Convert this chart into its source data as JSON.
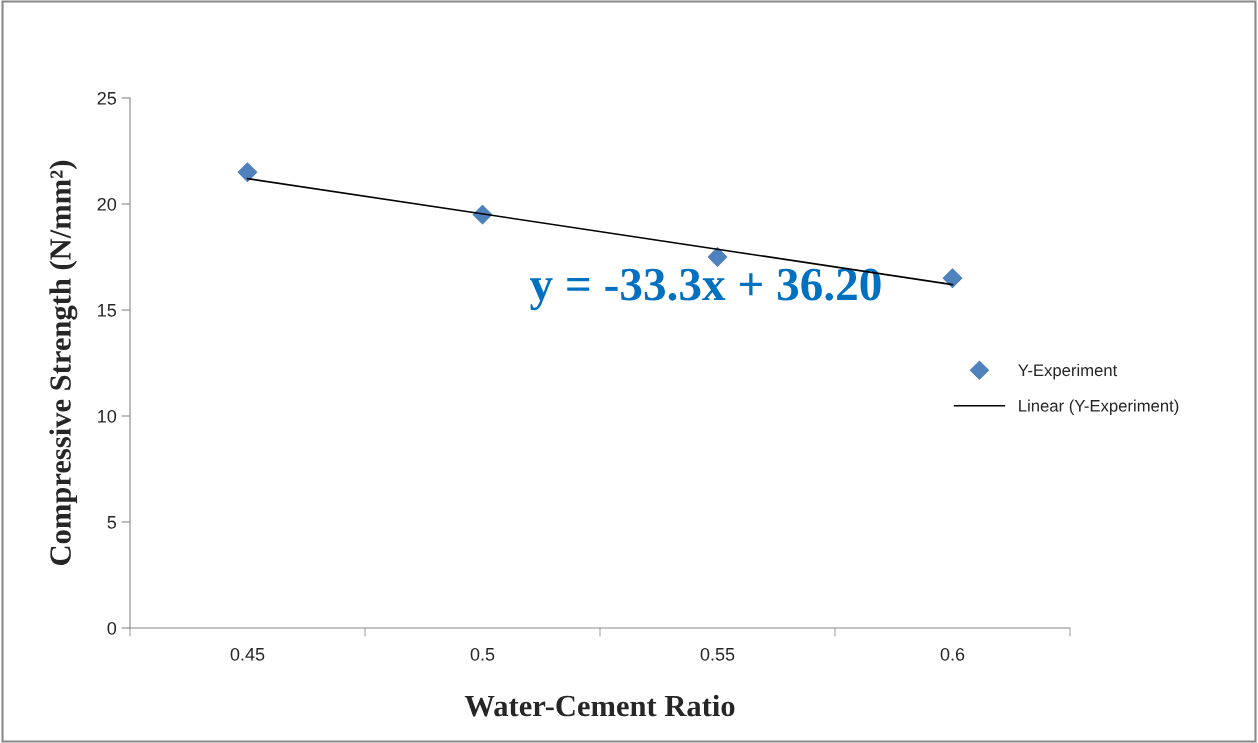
{
  "chart_data": {
    "type": "scatter",
    "xlabel": "Water-Cement Ratio",
    "ylabel": "Compressive Strength (N/mm²)",
    "categories": [
      "0.45",
      "0.5",
      "0.55",
      "0.6"
    ],
    "series": [
      {
        "name": "Y-Experiment",
        "color": "#4f81bd",
        "marker": "diamond",
        "values": [
          21.5,
          19.5,
          17.5,
          16.5
        ]
      },
      {
        "name": "Linear (Y-Experiment)",
        "type": "line",
        "color": "#000000",
        "x": [
          "0.45",
          "0.6"
        ],
        "values": [
          21.2,
          16.2
        ]
      }
    ],
    "ylim": [
      0,
      25
    ],
    "yticks": [
      0,
      5,
      10,
      15,
      20,
      25
    ],
    "grid": false,
    "legend": "right",
    "annotations": [
      "y = -33.3x + 36.20"
    ]
  }
}
